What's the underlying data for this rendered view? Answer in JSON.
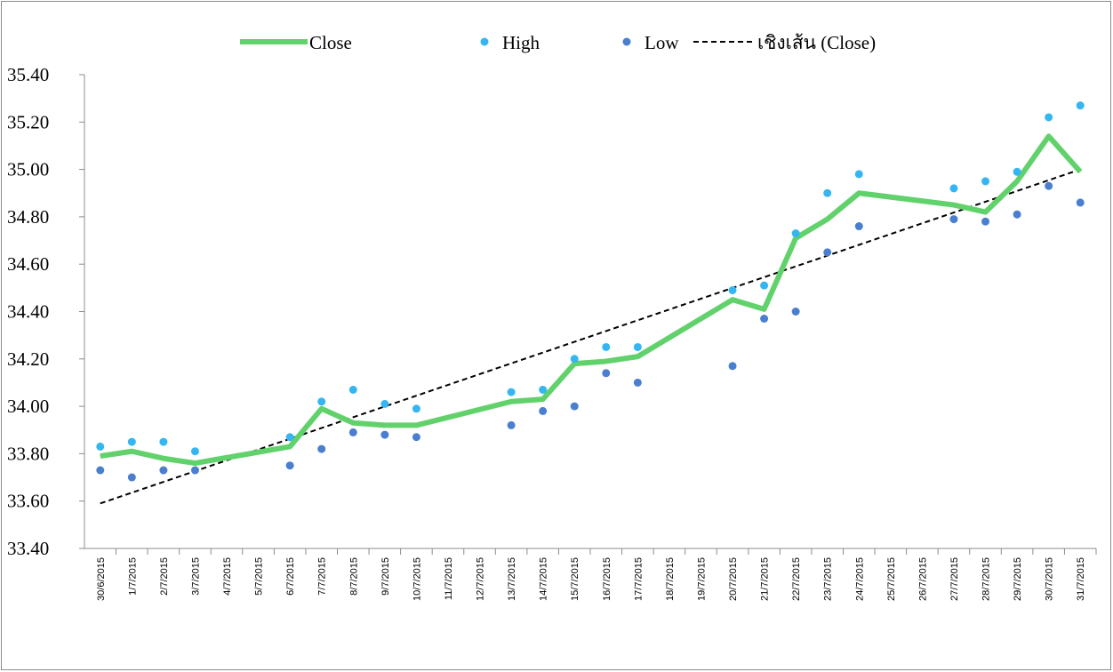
{
  "chart_data": {
    "type": "line",
    "categories": [
      "30/6/2015",
      "1/7/2015",
      "2/7/2015",
      "3/7/2015",
      "4/7/2015",
      "5/7/2015",
      "6/7/2015",
      "7/7/2015",
      "8/7/2015",
      "9/7/2015",
      "10/7/2015",
      "11/7/2015",
      "12/7/2015",
      "13/7/2015",
      "14/7/2015",
      "15/7/2015",
      "16/7/2015",
      "17/7/2015",
      "18/7/2015",
      "19/7/2015",
      "20/7/2015",
      "21/7/2015",
      "22/7/2015",
      "23/7/2015",
      "24/7/2015",
      "25/7/2015",
      "26/7/2015",
      "27/7/2015",
      "28/7/2015",
      "29/7/2015",
      "30/7/2015",
      "31/7/2015"
    ],
    "series": [
      {
        "name": "Close",
        "kind": "line",
        "color": "#61d26b",
        "x": [
          "30/6/2015",
          "1/7/2015",
          "2/7/2015",
          "3/7/2015",
          "6/7/2015",
          "7/7/2015",
          "8/7/2015",
          "9/7/2015",
          "10/7/2015",
          "13/7/2015",
          "14/7/2015",
          "15/7/2015",
          "16/7/2015",
          "17/7/2015",
          "20/7/2015",
          "21/7/2015",
          "22/7/2015",
          "23/7/2015",
          "24/7/2015",
          "27/7/2015",
          "28/7/2015",
          "29/7/2015",
          "30/7/2015",
          "31/7/2015"
        ],
        "values": [
          33.79,
          33.81,
          33.78,
          33.76,
          33.83,
          33.99,
          33.93,
          33.92,
          33.92,
          34.02,
          34.03,
          34.18,
          34.19,
          34.21,
          34.45,
          34.41,
          34.71,
          34.79,
          34.9,
          34.85,
          34.82,
          34.95,
          35.14,
          34.99
        ]
      },
      {
        "name": "High",
        "kind": "scatter",
        "color": "#35b6f2",
        "x": [
          "30/6/2015",
          "1/7/2015",
          "2/7/2015",
          "3/7/2015",
          "6/7/2015",
          "7/7/2015",
          "8/7/2015",
          "9/7/2015",
          "10/7/2015",
          "13/7/2015",
          "14/7/2015",
          "15/7/2015",
          "16/7/2015",
          "17/7/2015",
          "20/7/2015",
          "21/7/2015",
          "22/7/2015",
          "23/7/2015",
          "24/7/2015",
          "27/7/2015",
          "28/7/2015",
          "29/7/2015",
          "30/7/2015",
          "31/7/2015"
        ],
        "values": [
          33.83,
          33.85,
          33.85,
          33.81,
          33.87,
          34.02,
          34.07,
          34.01,
          33.99,
          34.06,
          34.07,
          34.2,
          34.25,
          34.25,
          34.49,
          34.51,
          34.73,
          34.9,
          34.98,
          34.92,
          34.95,
          34.99,
          35.22,
          35.27
        ]
      },
      {
        "name": "Low",
        "kind": "scatter",
        "color": "#4a7fd0",
        "x": [
          "30/6/2015",
          "1/7/2015",
          "2/7/2015",
          "3/7/2015",
          "6/7/2015",
          "7/7/2015",
          "8/7/2015",
          "9/7/2015",
          "10/7/2015",
          "13/7/2015",
          "14/7/2015",
          "15/7/2015",
          "16/7/2015",
          "17/7/2015",
          "20/7/2015",
          "21/7/2015",
          "22/7/2015",
          "23/7/2015",
          "24/7/2015",
          "27/7/2015",
          "28/7/2015",
          "29/7/2015",
          "30/7/2015",
          "31/7/2015"
        ],
        "values": [
          33.73,
          33.7,
          33.73,
          33.73,
          33.75,
          33.82,
          33.89,
          33.88,
          33.87,
          33.92,
          33.98,
          34.0,
          34.14,
          34.1,
          34.17,
          34.37,
          34.4,
          34.65,
          34.76,
          34.79,
          34.78,
          34.81,
          34.93,
          34.86
        ]
      },
      {
        "name": "เชิงเส้น (Close)",
        "kind": "trend",
        "color": "#000000",
        "x": [
          "30/6/2015",
          "31/7/2015"
        ],
        "values": [
          33.59,
          35.0
        ]
      }
    ],
    "ylim": [
      33.4,
      35.4
    ],
    "yticks": [
      {
        "value": 33.4,
        "label": "33.40"
      },
      {
        "value": 33.6,
        "label": "33.60"
      },
      {
        "value": 33.8,
        "label": "33.80"
      },
      {
        "value": 34.0,
        "label": "34.00"
      },
      {
        "value": 34.2,
        "label": "34.20"
      },
      {
        "value": 34.4,
        "label": "34.40"
      },
      {
        "value": 34.6,
        "label": "34.60"
      },
      {
        "value": 34.8,
        "label": "34.80"
      },
      {
        "value": 35.0,
        "label": "35.00"
      },
      {
        "value": 35.2,
        "label": "35.20"
      },
      {
        "value": 35.4,
        "label": "35.40"
      }
    ],
    "legend": "top"
  }
}
